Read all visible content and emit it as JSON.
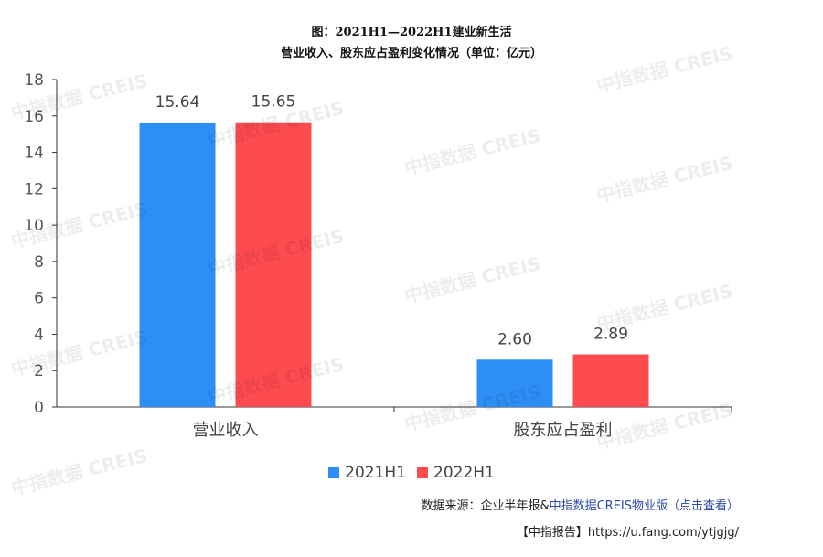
{
  "title_line1": "图：2021H1—2022H1建业新生活",
  "title_line2": "营业收入、股东应占盈利变化情况（单位：亿元）",
  "watermark": "中指数据 CREIS",
  "colors": {
    "series_2021": "#2d8ef8",
    "series_2022": "#fd4b4f",
    "axis": "#333333"
  },
  "chart_data": {
    "type": "bar",
    "title": "图：2021H1—2022H1建业新生活 营业收入、股东应占盈利变化情况（单位：亿元）",
    "categories": [
      "营业收入",
      "股东应占盈利"
    ],
    "series": [
      {
        "name": "2021H1",
        "values": [
          15.64,
          2.6
        ],
        "labels": [
          "15.64",
          "2.60"
        ]
      },
      {
        "name": "2022H1",
        "values": [
          15.65,
          2.89
        ],
        "labels": [
          "15.65",
          "2.89"
        ]
      }
    ],
    "ylim": [
      0,
      18
    ],
    "yticks": [
      0,
      2,
      4,
      6,
      8,
      10,
      12,
      14,
      16,
      18
    ],
    "grid": false,
    "legend": "bottom-center"
  },
  "footer": {
    "source_prefix": "数据来源：企业半年报&",
    "source_link": "中指数据CREIS物业版（点击查看）",
    "report": "【中指报告】https://u.fang.com/ytjgjg/"
  }
}
